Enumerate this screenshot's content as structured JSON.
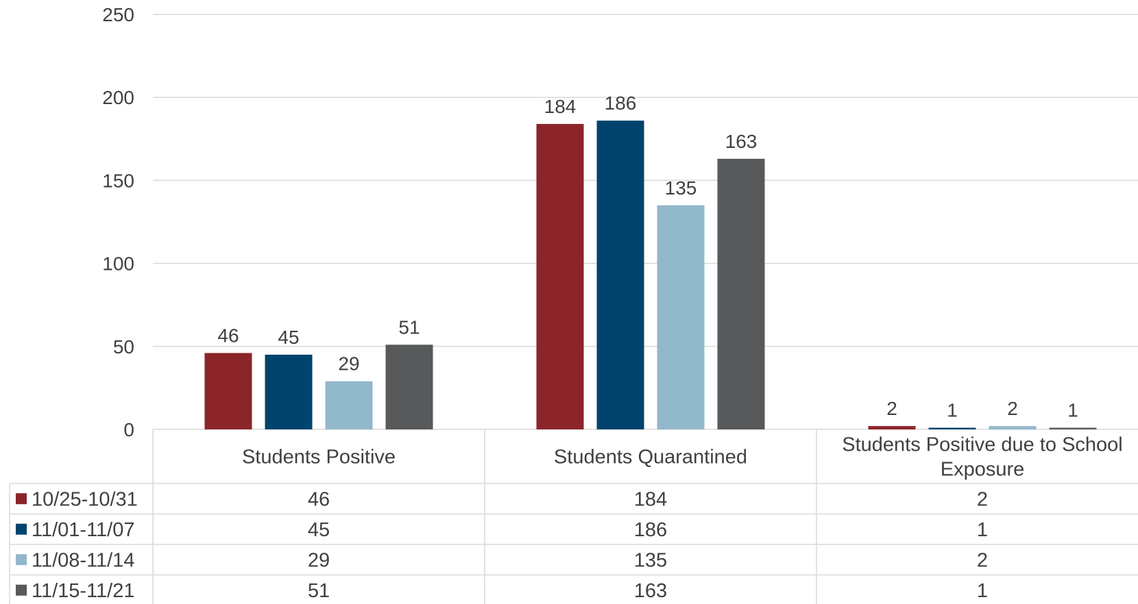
{
  "chart_data": {
    "type": "bar",
    "title": "",
    "xlabel": "",
    "ylabel": "",
    "ylim": [
      0,
      250
    ],
    "yticks": [
      0,
      50,
      100,
      150,
      200,
      250
    ],
    "grid": true,
    "legend": "data-table-left",
    "categories": [
      "Students Positive",
      "Students Quarantined",
      "Students Positive due to School Exposure"
    ],
    "category_lines": [
      [
        "Students Positive"
      ],
      [
        "Students Quarantined"
      ],
      [
        "Students Positive due to School",
        "Exposure"
      ]
    ],
    "series": [
      {
        "name": "10/25-10/31",
        "color": "#8b2529",
        "values": [
          46,
          184,
          2
        ]
      },
      {
        "name": "11/01-11/07",
        "color": "#00446e",
        "values": [
          45,
          186,
          1
        ]
      },
      {
        "name": "11/08-11/14",
        "color": "#92b8cb",
        "values": [
          29,
          135,
          2
        ]
      },
      {
        "name": "11/15-11/21",
        "color": "#58595b",
        "values": [
          51,
          163,
          1
        ]
      }
    ]
  }
}
